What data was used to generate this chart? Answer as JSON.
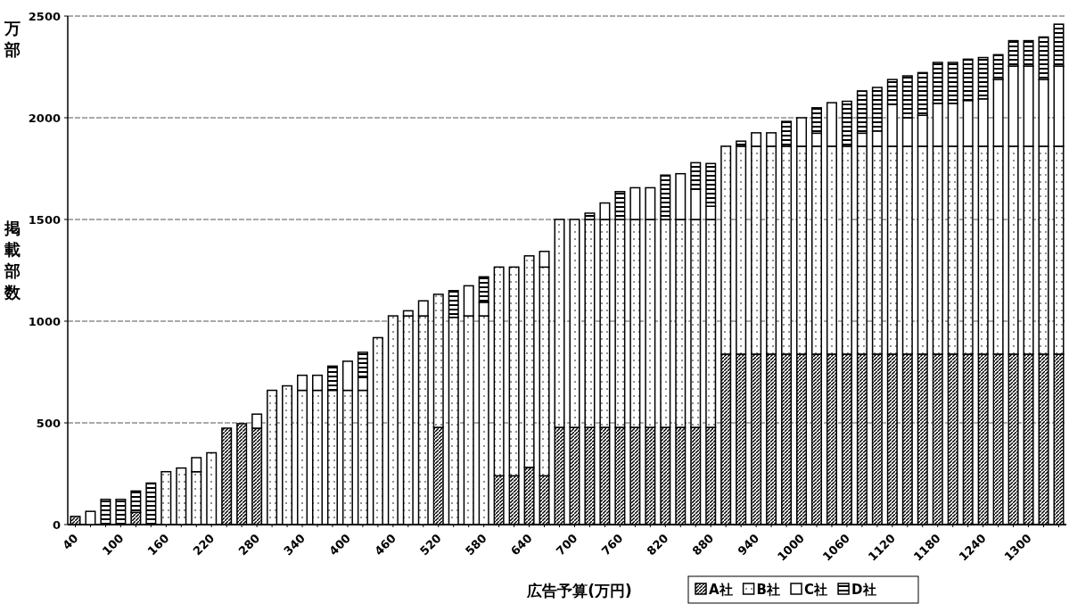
{
  "chart_data": {
    "type": "bar",
    "stacked": true,
    "xlabel": "広告予算(万円)",
    "ylabel": "掲載部数",
    "annotations": [
      "万部"
    ],
    "categories": [
      "40",
      null,
      null,
      "100",
      null,
      null,
      "160",
      null,
      null,
      "220",
      null,
      null,
      "280",
      null,
      null,
      "340",
      null,
      null,
      "400",
      null,
      null,
      "460",
      null,
      null,
      "520",
      null,
      null,
      "580",
      null,
      null,
      "640",
      null,
      null,
      "700",
      null,
      null,
      "760",
      null,
      null,
      "820",
      null,
      null,
      "880",
      null,
      null,
      "940",
      null,
      null,
      "1000",
      null,
      null,
      "1060",
      null,
      null,
      "1120",
      null,
      null,
      "1180",
      null,
      null,
      "1240",
      null,
      null,
      "1300",
      null,
      null
    ],
    "series": [
      {
        "name": "A社",
        "values": [
          40,
          0,
          0,
          0,
          60,
          0,
          0,
          0,
          0,
          0,
          474,
          496,
          474,
          0,
          0,
          0,
          0,
          0,
          0,
          0,
          0,
          0,
          0,
          0,
          478,
          0,
          0,
          0,
          240,
          240,
          281,
          240,
          478,
          478,
          478,
          478,
          478,
          478,
          478,
          478,
          478,
          478,
          478,
          838,
          838,
          838,
          838,
          838,
          838,
          838,
          838,
          838,
          838,
          838,
          838,
          838,
          838,
          838,
          838,
          838,
          838,
          838,
          838,
          838,
          838,
          838
        ]
      },
      {
        "name": "B社",
        "values": [
          0,
          0,
          0,
          0,
          0,
          0,
          260,
          278,
          260,
          353,
          0,
          0,
          0,
          660,
          682,
          660,
          660,
          660,
          660,
          660,
          919,
          1026,
          1026,
          1026,
          654,
          1019,
          1026,
          1026,
          1026,
          1026,
          1040,
          1026,
          1022,
          1022,
          1022,
          1022,
          1022,
          1022,
          1022,
          1022,
          1022,
          1022,
          1022,
          1022,
          1022,
          1022,
          1022,
          1022,
          1022,
          1022,
          1022,
          1022,
          1022,
          1022,
          1022,
          1022,
          1022,
          1022,
          1022,
          1022,
          1022,
          1022,
          1022,
          1022,
          1022,
          1022
        ]
      },
      {
        "name": "C社",
        "values": [
          0,
          65,
          0,
          0,
          0,
          0,
          0,
          0,
          69,
          0,
          0,
          0,
          69,
          0,
          0,
          74,
          74,
          0,
          143,
          63,
          0,
          0,
          25,
          74,
          0,
          0,
          148,
          67,
          0,
          0,
          0,
          77,
          0,
          0,
          0,
          81,
          0,
          156,
          156,
          0,
          225,
          149,
          65,
          0,
          0,
          66,
          66,
          0,
          140,
          64,
          214,
          0,
          64,
          75,
          206,
          140,
          152,
          211,
          211,
          225,
          233,
          328,
          394,
          394,
          328,
          394
        ]
      },
      {
        "name": "D社",
        "values": [
          0,
          0,
          124,
          124,
          105,
          204,
          0,
          0,
          0,
          0,
          0,
          0,
          0,
          0,
          0,
          0,
          0,
          119,
          0,
          124,
          0,
          0,
          0,
          0,
          0,
          131,
          0,
          125,
          0,
          0,
          0,
          0,
          0,
          0,
          31,
          0,
          137,
          0,
          0,
          218,
          0,
          130,
          210,
          0,
          25,
          0,
          0,
          122,
          0,
          125,
          0,
          221,
          208,
          214,
          122,
          206,
          210,
          201,
          201,
          203,
          203,
          122,
          125,
          125,
          209,
          206
        ]
      }
    ],
    "ylim": [
      0,
      2500
    ],
    "yticks": [
      0,
      500,
      1000,
      1500,
      2000,
      2500
    ],
    "grid": "y",
    "legend": "bottom"
  }
}
